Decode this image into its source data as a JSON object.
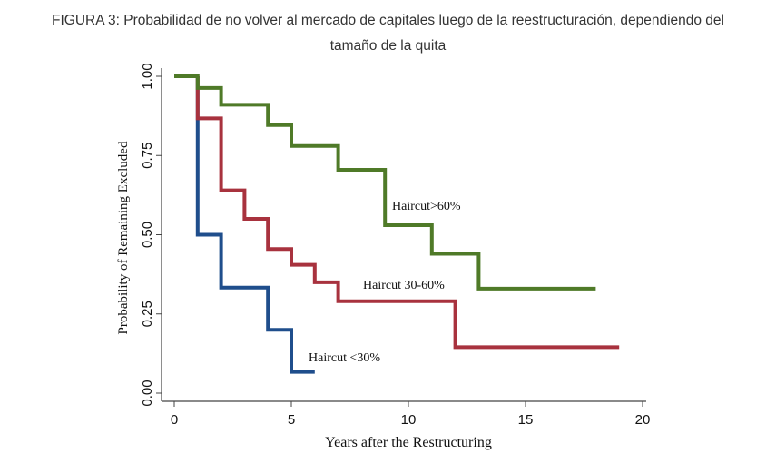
{
  "chart_data": {
    "type": "line",
    "title_line1": "FIGURA 3: Probabilidad de no volver al mercado de capitales luego de la reestructuración, dependiendo del",
    "title_line2": "tamaño de la quita",
    "xlabel": "Years after the Restructuring",
    "ylabel": "Probability of Remaining Excluded",
    "xlim": [
      0,
      20
    ],
    "ylim": [
      0,
      1
    ],
    "xticks": [
      "0",
      "5",
      "10",
      "15",
      "20"
    ],
    "yticks": [
      "0.00",
      "0.25",
      "0.50",
      "0.75",
      "1.00"
    ],
    "series": [
      {
        "name": "Haircut <30%",
        "color": "#1f4e8c",
        "start": [
          1,
          1.0
        ],
        "x": [
          1,
          2,
          4,
          5,
          6
        ],
        "y": [
          0.5,
          0.333,
          0.2,
          0.067,
          0.067
        ]
      },
      {
        "name": "Haircut 30-60%",
        "color": "#a8323e",
        "start": [
          1,
          1.0
        ],
        "x": [
          1,
          2,
          3,
          4,
          5,
          6,
          7,
          12,
          19
        ],
        "y": [
          0.867,
          0.64,
          0.55,
          0.455,
          0.405,
          0.35,
          0.29,
          0.145,
          0.145
        ]
      },
      {
        "name": "Haircut>60%",
        "color": "#4f7a28",
        "start": [
          0,
          1.0
        ],
        "x": [
          0,
          1,
          2,
          4,
          5,
          7,
          9,
          11,
          13,
          18
        ],
        "y": [
          1.0,
          0.963,
          0.91,
          0.846,
          0.78,
          0.705,
          0.53,
          0.44,
          0.33,
          0.33
        ]
      }
    ],
    "labels": [
      "Haircut>60%",
      "Haircut 30-60%",
      "Haircut <30%"
    ]
  }
}
